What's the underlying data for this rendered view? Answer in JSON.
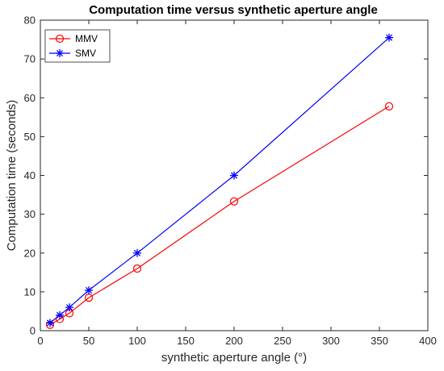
{
  "chart_data": {
    "type": "line",
    "title": "Computation time versus synthetic aperture angle",
    "xlabel": "synthetic aperture angle (°)",
    "ylabel": "Computation time (seconds)",
    "xlim": [
      0,
      400
    ],
    "ylim": [
      0,
      80
    ],
    "xticks": [
      0,
      50,
      100,
      150,
      200,
      250,
      300,
      350,
      400
    ],
    "yticks": [
      0,
      10,
      20,
      30,
      40,
      50,
      60,
      70,
      80
    ],
    "grid": false,
    "legend_position": "top-left",
    "x": [
      10,
      20,
      30,
      50,
      100,
      200,
      360
    ],
    "series": [
      {
        "name": "MMV",
        "color": "#ff0000",
        "marker": "circle",
        "values": [
          1.5,
          3.0,
          4.5,
          8.5,
          16.0,
          33.3,
          57.8
        ]
      },
      {
        "name": "SMV",
        "color": "#0000ff",
        "marker": "asterisk",
        "values": [
          2.0,
          4.0,
          6.0,
          10.4,
          20.0,
          40.0,
          75.5
        ]
      }
    ]
  }
}
